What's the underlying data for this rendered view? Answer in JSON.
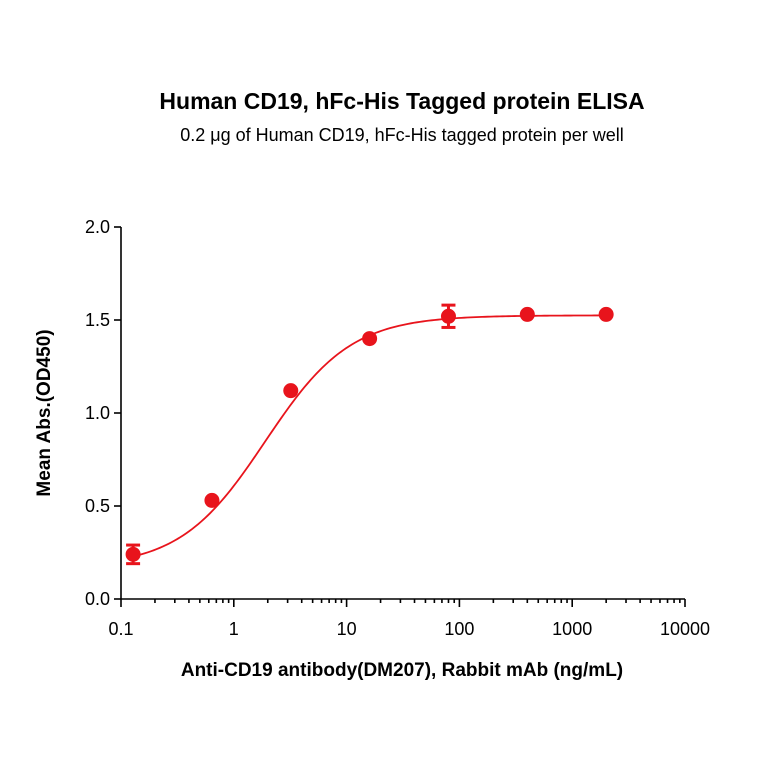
{
  "chart_data": {
    "type": "scatter",
    "title": "Human CD19, hFc-His Tagged protein ELISA",
    "subtitle": "0.2 μg of Human CD19, hFc-His tagged protein per well",
    "xlabel": "Anti-CD19 antibody(DM207), Rabbit mAb (ng/mL)",
    "ylabel": "Mean Abs.(OD450)",
    "x_scale": "log",
    "xlim": [
      0.1,
      10000
    ],
    "ylim": [
      0,
      2.0
    ],
    "x_ticks": [
      0.1,
      1,
      10,
      100,
      1000,
      10000
    ],
    "x_tick_labels": [
      "0.1",
      "1",
      "10",
      "100",
      "1000",
      "10000"
    ],
    "y_ticks": [
      0,
      0.5,
      1.0,
      1.5,
      2.0
    ],
    "y_tick_labels": [
      "0.0",
      "0.5",
      "1.0",
      "1.5",
      "2.0"
    ],
    "grid": false,
    "legend": "none",
    "color": "#e8141c",
    "series": [
      {
        "x": [
          0.128,
          0.64,
          3.2,
          16,
          80,
          400,
          2000
        ],
        "y": [
          0.24,
          0.53,
          1.12,
          1.4,
          1.52,
          1.53,
          1.53
        ],
        "error": [
          0.05,
          0.0,
          0.0,
          0.0,
          0.06,
          0.0,
          0.0
        ]
      }
    ],
    "fit": {
      "model": "4PL",
      "bottom": 0.17,
      "top": 1.525,
      "ec50": 1.9,
      "hill": 1.15
    }
  }
}
